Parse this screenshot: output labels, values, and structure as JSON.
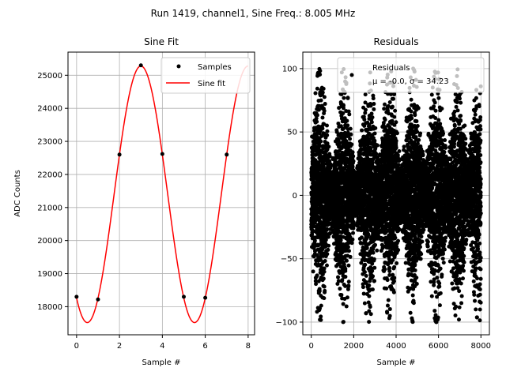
{
  "suptitle": "Run 1419, channel1, Sine Freq.: 8.005 MHz",
  "chart_data": [
    {
      "type": "scatter",
      "title": "Sine Fit",
      "xlabel": "Sample #",
      "ylabel": "ADC Counts",
      "xlim": [
        -0.4,
        8.3
      ],
      "ylim": [
        17150,
        25700
      ],
      "xticks": [
        0,
        2,
        4,
        6,
        8
      ],
      "yticks": [
        18000,
        19000,
        20000,
        21000,
        22000,
        23000,
        24000,
        25000
      ],
      "grid": true,
      "legend": {
        "placement": "top-right",
        "entries": [
          "Samples",
          "Sine fit"
        ]
      },
      "series": [
        {
          "name": "Samples",
          "kind": "points",
          "color": "#000000",
          "points": [
            [
              0,
              18300
            ],
            [
              1,
              18220
            ],
            [
              2,
              22600
            ],
            [
              3,
              25300
            ],
            [
              4,
              22620
            ],
            [
              5,
              18300
            ],
            [
              6,
              18270
            ],
            [
              7,
              22600
            ]
          ]
        },
        {
          "name": "Sine fit",
          "kind": "line",
          "color": "#ff0000",
          "model": {
            "offset": 21400,
            "amplitude": 3880,
            "period_samples": 5.0,
            "peak_at": 3.0,
            "x_range": [
              0,
              8
            ]
          }
        }
      ]
    },
    {
      "type": "scatter",
      "title": "Residuals",
      "xlabel": "Sample #",
      "xlim": [
        -400,
        8400
      ],
      "ylim": [
        -110,
        113
      ],
      "xticks": [
        0,
        2000,
        4000,
        6000,
        8000
      ],
      "yticks": [
        -100,
        -50,
        0,
        50,
        100
      ],
      "grid": true,
      "legend": {
        "placement": "top-right",
        "entries": [
          "Residuals\nμ = -0.0, σ = 34.23"
        ]
      },
      "series": [
        {
          "name": "Residuals",
          "kind": "points",
          "color": "#000000",
          "n_points": 8000,
          "mean": -0.0,
          "sigma": 34.23,
          "envelope_period_samples": 1250,
          "envelope_peak_x": [
            400,
            1500,
            2700,
            3700,
            4800,
            5900,
            6900,
            7900
          ],
          "envelope_max": 100,
          "envelope_min": 20
        }
      ]
    }
  ]
}
